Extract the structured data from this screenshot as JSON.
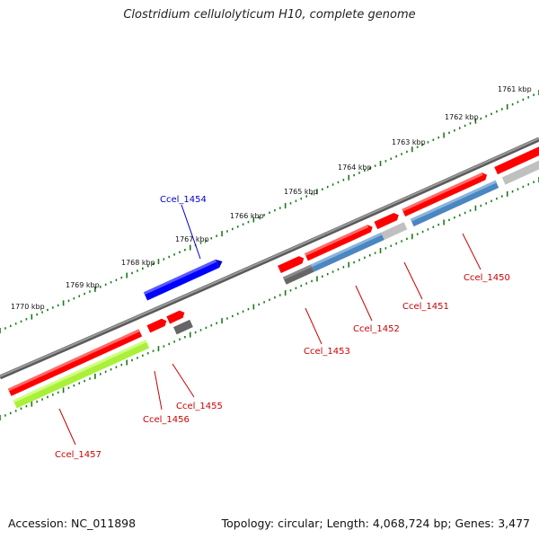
{
  "title": "Clostridium cellulolyticum H10, complete genome",
  "footer": {
    "accession": "Accession: NC_011898",
    "summary": "Topology: circular; Length: 4,068,724 bp; Genes: 3,477"
  },
  "scale_labels": [
    "1761 kbp",
    "1762 kbp",
    "1763 kbp",
    "1764 kbp",
    "1765 kbp",
    "1766 kbp",
    "1767 kbp",
    "1768 kbp",
    "1769 kbp",
    "1770 kbp"
  ],
  "genes": [
    {
      "name": "Ccel_1450",
      "color": "#cc0000"
    },
    {
      "name": "Ccel_1451",
      "color": "#cc0000"
    },
    {
      "name": "Ccel_1452",
      "color": "#cc0000"
    },
    {
      "name": "Ccel_1453",
      "color": "#cc0000"
    },
    {
      "name": "Ccel_1454",
      "color": "#0000cc"
    },
    {
      "name": "Ccel_1455",
      "color": "#cc0000"
    },
    {
      "name": "Ccel_1456",
      "color": "#cc0000"
    },
    {
      "name": "Ccel_1457",
      "color": "#cc0000"
    }
  ],
  "colors": {
    "backbone": "#7f7f7f",
    "tick": "#1a7a1a",
    "cds_red": "#ff0000",
    "cds_blue": "#0000ff",
    "cds_steel": "#4a86c0",
    "cds_grey_dark": "#666666",
    "cds_grey_light": "#c0c0c0",
    "cds_lime": "#aaf03a"
  }
}
